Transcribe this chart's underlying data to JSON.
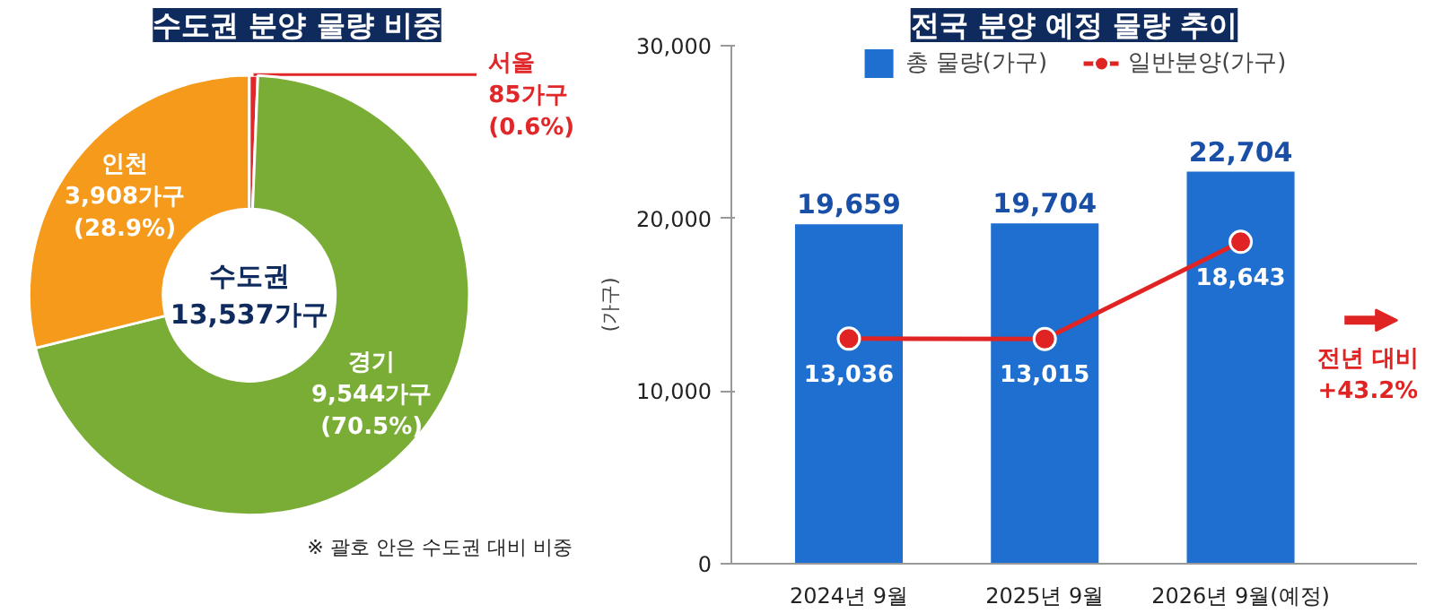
{
  "chart_data": [
    {
      "type": "donut",
      "title": "수도권 분양 물량 비중",
      "categories": [
        "서울",
        "경기",
        "인천"
      ],
      "values": [
        85,
        9544,
        3908
      ],
      "colors": [
        "#e0282a",
        "#7aad35",
        "#f59a1b"
      ],
      "value_labels": [
        "85가구\n(0.6%)",
        "9,544가구\n(70.5%)",
        "3,908가구\n(28.9%)"
      ],
      "annotations": [
        "수도권\n13,537가구",
        "※ 괄호 안은 수도권 대비 비중"
      ]
    },
    {
      "type": "bar",
      "title": "전국 분양 예정 물량 추이",
      "ylabel": "(가구)",
      "categories": [
        "2024년 9월",
        "2025년 9월",
        "2026년 9월(예정)"
      ],
      "series": [
        {
          "name": "총 물량(가구)",
          "type": "bar",
          "color": "#1f6fd0",
          "values": [
            19659,
            19704,
            22704
          ],
          "value_labels": [
            "19,659",
            "19,704",
            "22,704"
          ]
        },
        {
          "name": "일반분양(가구)",
          "type": "line",
          "color": "#e02424",
          "values": [
            13036,
            13015,
            18643
          ],
          "value_labels": [
            "13,036",
            "13,015",
            "18,643"
          ]
        }
      ],
      "ylim": [
        0,
        30000
      ],
      "yticks": [
        0,
        {
          "value": 10000,
          "label": "10,000"
        },
        {
          "value": 20000,
          "label": "20,000"
        },
        {
          "value": 30000,
          "label": "30,000"
        }
      ],
      "legend": "top",
      "marker": "circle",
      "line_style": "solid",
      "annotations": [
        "전년 대비\n+43.2%"
      ]
    }
  ]
}
